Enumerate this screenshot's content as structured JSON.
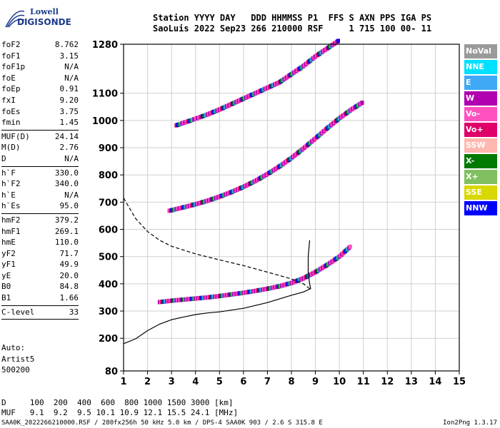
{
  "logo": {
    "line1": "Lowell",
    "line2": "DIGISONDE"
  },
  "header": {
    "line1": "Station YYYY DAY   DDD HHMMSS P1  FFS S AXN PPS IGA PS",
    "line2": "SaoLuis 2022 Sep23 266 210000 RSF     1 715 100 00- 11"
  },
  "params": {
    "group1": [
      {
        "name": "foF2",
        "value": "8.762"
      },
      {
        "name": "foF1",
        "value": "3.15"
      },
      {
        "name": "foF1p",
        "value": "N/A"
      },
      {
        "name": "foE",
        "value": "N/A"
      },
      {
        "name": "foEp",
        "value": "0.91"
      },
      {
        "name": "fxI",
        "value": "9.20"
      },
      {
        "name": "foEs",
        "value": "3.75"
      },
      {
        "name": "fmin",
        "value": "1.45"
      }
    ],
    "group2": [
      {
        "name": "MUF(D)",
        "value": "24.14"
      },
      {
        "name": "M(D)",
        "value": "2.76"
      },
      {
        "name": "D",
        "value": "N/A"
      }
    ],
    "group3": [
      {
        "name": "h`F",
        "value": "330.0"
      },
      {
        "name": "h`F2",
        "value": "340.0"
      },
      {
        "name": "h`E",
        "value": "N/A"
      },
      {
        "name": "h`Es",
        "value": "95.0"
      }
    ],
    "group4": [
      {
        "name": "hmF2",
        "value": "379.2"
      },
      {
        "name": "hmF1",
        "value": "269.1"
      },
      {
        "name": "hmE",
        "value": "110.0"
      },
      {
        "name": "yF2",
        "value": "71.7"
      },
      {
        "name": "yF1",
        "value": "49.9"
      },
      {
        "name": "yE",
        "value": "20.0"
      },
      {
        "name": "B0",
        "value": "84.8"
      },
      {
        "name": "B1",
        "value": "1.66"
      }
    ],
    "clevel": {
      "name": "C-level",
      "value": "33"
    }
  },
  "auto": {
    "line1": "Auto:",
    "line2": "Artist5",
    "line3": "500200"
  },
  "muf_table": {
    "d_row": "D     100  200  400  600  800 1000 1500 3000 [km]",
    "muf_row": "MUF   9.1  9.2  9.5 10.1 10.9 12.1 15.5 24.1 [MHz]"
  },
  "footer": "SAA0K_2022266210000.RSF / 280fx256h 50 kHz 5.0 km / DPS-4 SAA0K 903 / 2.6 S 315.8 E",
  "version": "Ion2Png 1.3.17",
  "legend": [
    {
      "label": "NoVal",
      "color": "#9a9a9a"
    },
    {
      "label": "NNE",
      "color": "#00e0ff"
    },
    {
      "label": "E",
      "color": "#3fa9f5"
    },
    {
      "label": "W",
      "color": "#b000b0"
    },
    {
      "label": "Vo-",
      "color": "#ff50c0"
    },
    {
      "label": "Vo+",
      "color": "#e0006a"
    },
    {
      "label": "SSW",
      "color": "#ffb8b0"
    },
    {
      "label": "X-",
      "color": "#007a00"
    },
    {
      "label": "X+",
      "color": "#80c060"
    },
    {
      "label": "SSE",
      "color": "#d8d800"
    },
    {
      "label": "NNW",
      "color": "#0000ff"
    }
  ],
  "chart_data": {
    "type": "scatter",
    "xlabel": "",
    "ylabel": "",
    "xlim": [
      1,
      15
    ],
    "ylim": [
      80,
      1280
    ],
    "x_ticks": [
      1,
      2,
      3,
      4,
      5,
      6,
      7,
      8,
      9,
      10,
      11,
      12,
      13,
      14,
      15
    ],
    "y_ticks": [
      80,
      200,
      300,
      400,
      500,
      600,
      700,
      800,
      900,
      1000,
      1100,
      1280
    ],
    "grid": true,
    "series": [
      {
        "points": [
          [
            2.5,
            333
          ],
          [
            3,
            338
          ],
          [
            3.5,
            342
          ],
          [
            4,
            346
          ],
          [
            4.5,
            350
          ],
          [
            5,
            355
          ],
          [
            5.5,
            361
          ],
          [
            6,
            367
          ],
          [
            6.5,
            374
          ],
          [
            7,
            382
          ],
          [
            7.5,
            391
          ],
          [
            8,
            403
          ],
          [
            8.5,
            420
          ],
          [
            9,
            443
          ],
          [
            9.5,
            470
          ],
          [
            10,
            500
          ],
          [
            10.5,
            540
          ]
        ]
      },
      {
        "points": [
          [
            2.9,
            668
          ],
          [
            3.5,
            681
          ],
          [
            4,
            692
          ],
          [
            4.5,
            705
          ],
          [
            5,
            720
          ],
          [
            5.5,
            737
          ],
          [
            6,
            756
          ],
          [
            6.5,
            778
          ],
          [
            7,
            803
          ],
          [
            7.5,
            831
          ],
          [
            8,
            862
          ],
          [
            8.5,
            897
          ],
          [
            9,
            934
          ],
          [
            9.5,
            972
          ],
          [
            10,
            1008
          ],
          [
            10.5,
            1040
          ],
          [
            11,
            1068
          ]
        ]
      },
      {
        "points": [
          [
            3.2,
            982
          ],
          [
            3.8,
            1000
          ],
          [
            4.5,
            1022
          ],
          [
            5,
            1040
          ],
          [
            5.5,
            1060
          ],
          [
            6,
            1080
          ],
          [
            6.5,
            1100
          ],
          [
            7,
            1120
          ],
          [
            7.5,
            1140
          ],
          [
            8,
            1170
          ],
          [
            8.5,
            1200
          ],
          [
            9,
            1235
          ],
          [
            9.5,
            1265
          ],
          [
            10,
            1295
          ]
        ]
      }
    ],
    "lines": [
      {
        "name": "profile",
        "style": "solid",
        "points": [
          [
            1,
            180
          ],
          [
            1.5,
            198
          ],
          [
            2,
            228
          ],
          [
            2.5,
            252
          ],
          [
            3,
            268
          ],
          [
            3.5,
            278
          ],
          [
            4,
            287
          ],
          [
            4.5,
            293
          ],
          [
            5,
            297
          ],
          [
            6,
            310
          ],
          [
            7,
            331
          ],
          [
            8,
            358
          ],
          [
            8.5,
            370
          ],
          [
            8.8,
            382
          ],
          [
            8.76,
            400
          ],
          [
            8.7,
            440
          ],
          [
            8.7,
            500
          ],
          [
            8.76,
            560
          ]
        ]
      },
      {
        "name": "extrapolated",
        "style": "dashed",
        "points": [
          [
            1,
            715
          ],
          [
            1.5,
            640
          ],
          [
            2,
            592
          ],
          [
            2.5,
            560
          ],
          [
            3,
            538
          ],
          [
            4,
            510
          ],
          [
            5,
            488
          ],
          [
            6,
            467
          ],
          [
            7,
            443
          ],
          [
            8,
            418
          ],
          [
            8.5,
            400
          ],
          [
            8.76,
            382
          ]
        ]
      }
    ]
  }
}
